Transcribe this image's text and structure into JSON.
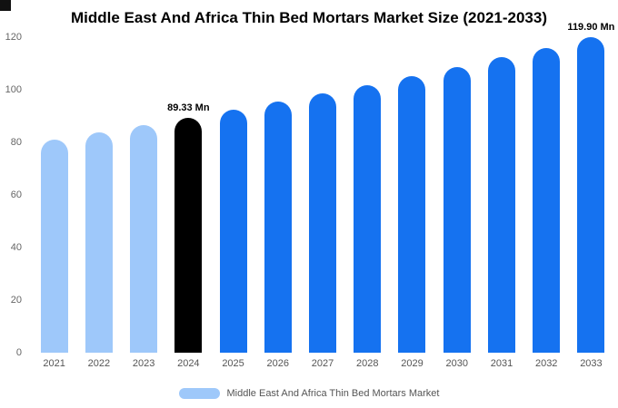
{
  "title": "Middle East And Africa Thin Bed Mortars Market Size (2021-2033)",
  "colors": {
    "past": "#9ec8fa",
    "highlight": "#000000",
    "forecast": "#1572f0"
  },
  "legend": {
    "label": "Middle East And Africa Thin Bed Mortars Market"
  },
  "chart_data": {
    "type": "bar",
    "title": "Middle East And Africa Thin Bed Mortars Market Size (2021-2033)",
    "unit": "Mn",
    "categories": [
      "2021",
      "2022",
      "2023",
      "2024",
      "2025",
      "2026",
      "2027",
      "2028",
      "2029",
      "2030",
      "2031",
      "2032",
      "2033"
    ],
    "values": [
      80.9,
      83.7,
      86.5,
      89.33,
      92.3,
      95.4,
      98.5,
      101.8,
      105.2,
      108.7,
      112.3,
      116.0,
      119.9
    ],
    "color_keys": [
      "past",
      "past",
      "past",
      "highlight",
      "forecast",
      "forecast",
      "forecast",
      "forecast",
      "forecast",
      "forecast",
      "forecast",
      "forecast",
      "forecast"
    ],
    "data_labels": [
      "",
      "",
      "",
      "89.33 Mn",
      "",
      "",
      "",
      "",
      "",
      "",
      "",
      "",
      "119.90 Mn"
    ],
    "ylim": [
      0,
      120
    ],
    "yticks": [
      0,
      20,
      40,
      60,
      80,
      100,
      120
    ],
    "grid": false,
    "legend_position": "bottom"
  }
}
